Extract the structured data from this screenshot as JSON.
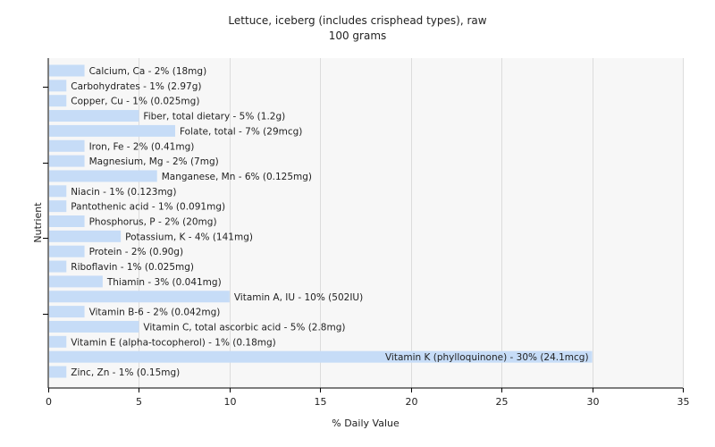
{
  "chart_data": {
    "type": "bar",
    "orientation": "horizontal",
    "title": "Lettuce, iceberg (includes crisphead types), raw",
    "subtitle": "100 grams",
    "xlabel": "% Daily Value",
    "ylabel": "Nutrient",
    "xlim": [
      0,
      35
    ],
    "xticks": [
      "0",
      "5",
      "10",
      "15",
      "20",
      "25",
      "30",
      "35"
    ],
    "grid": true,
    "bar_color": "#c6dcf7",
    "categories": [
      "Calcium, Ca",
      "Carbohydrates",
      "Copper, Cu",
      "Fiber, total dietary",
      "Folate, total",
      "Iron, Fe",
      "Magnesium, Mg",
      "Manganese, Mn",
      "Niacin",
      "Pantothenic acid",
      "Phosphorus, P",
      "Potassium, K",
      "Protein",
      "Riboflavin",
      "Thiamin",
      "Vitamin A, IU",
      "Vitamin B-6",
      "Vitamin C, total ascorbic acid",
      "Vitamin E (alpha-tocopherol)",
      "Vitamin K (phylloquinone)",
      "Zinc, Zn"
    ],
    "values": [
      2,
      1,
      1,
      5,
      7,
      2,
      2,
      6,
      1,
      1,
      2,
      4,
      2,
      1,
      3,
      10,
      2,
      5,
      1,
      30,
      1
    ],
    "labels": [
      "Calcium, Ca - 2% (18mg)",
      "Carbohydrates - 1% (2.97g)",
      "Copper, Cu - 1% (0.025mg)",
      "Fiber, total dietary - 5% (1.2g)",
      "Folate, total - 7% (29mcg)",
      "Iron, Fe - 2% (0.41mg)",
      "Magnesium, Mg - 2% (7mg)",
      "Manganese, Mn - 6% (0.125mg)",
      "Niacin - 1% (0.123mg)",
      "Pantothenic acid - 1% (0.091mg)",
      "Phosphorus, P - 2% (20mg)",
      "Potassium, K - 4% (141mg)",
      "Protein - 2% (0.90g)",
      "Riboflavin - 1% (0.025mg)",
      "Thiamin - 3% (0.041mg)",
      "Vitamin A, IU - 10% (502IU)",
      "Vitamin B-6 - 2% (0.042mg)",
      "Vitamin C, total ascorbic acid - 5% (2.8mg)",
      "Vitamin E (alpha-tocopherol) - 1% (0.18mg)",
      "Vitamin K (phylloquinone) - 30% (24.1mcg)",
      "Zinc, Zn - 1% (0.15mg)"
    ]
  }
}
